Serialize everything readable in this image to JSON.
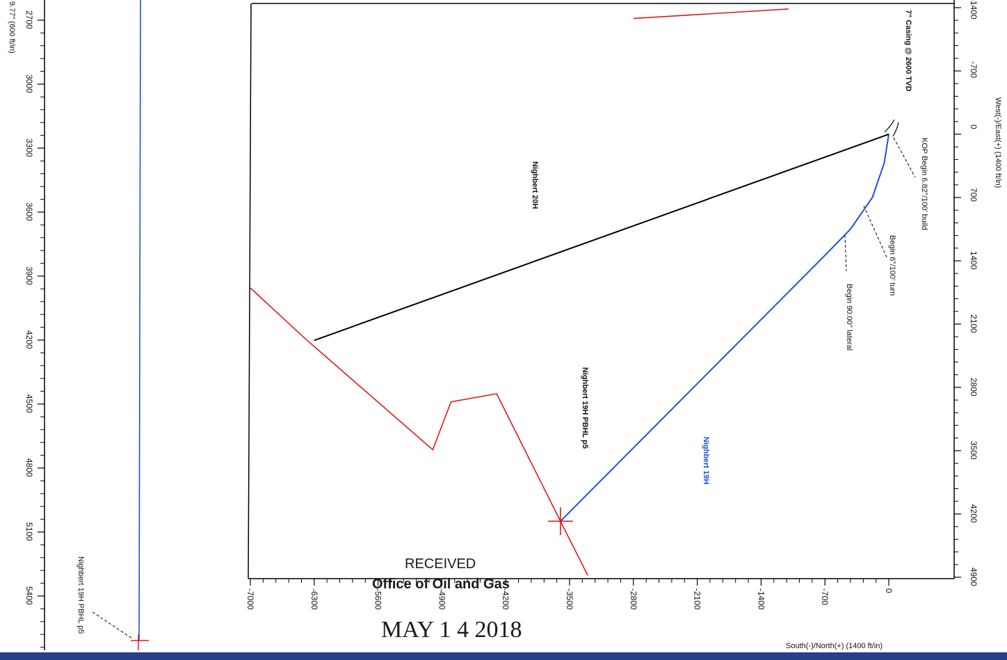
{
  "colors": {
    "well_19h": "#1f4fd8",
    "well_20h": "#000000",
    "boundary": "#e01818",
    "axis": "#000000",
    "frame_bottom": "#2a3f8a"
  },
  "left_panel": {
    "axis_title": "9.77\" (600 ft/in)",
    "ticks": [
      "2700",
      "3000",
      "3300",
      "3600",
      "3900",
      "4200",
      "4500",
      "4800",
      "5100",
      "5400"
    ],
    "target_label": "Nighbert 19H PBHL p5"
  },
  "chart": {
    "type": "line",
    "x_axis_title": "South(-)/North(+) (1400 ft/in)",
    "y_axis_title": "West(-)/East(+) (1400 ft/in)",
    "x_ticks": [
      "-7000",
      "-6300",
      "-5600",
      "-4900",
      "-4200",
      "-3500",
      "-2800",
      "-2100",
      "-1400",
      "-700",
      "0"
    ],
    "y_ticks": [
      "-1400",
      "-700",
      "0",
      "700",
      "1400",
      "2100",
      "2800",
      "3500",
      "4200",
      "4900"
    ],
    "xlim": [
      -7000,
      0
    ],
    "ylim": [
      -1400,
      4900
    ],
    "series": [
      {
        "name": "Nighbert 19H",
        "color_key": "well_19h",
        "points": [
          [
            0,
            0
          ],
          [
            -50,
            320
          ],
          [
            -180,
            700
          ],
          [
            -420,
            1050
          ],
          [
            -700,
            1340
          ],
          [
            -3600,
            4280
          ]
        ]
      },
      {
        "name": "Nighbert 20H",
        "color_key": "well_20h",
        "points": [
          [
            0,
            0
          ],
          [
            -6300,
            2280
          ]
        ]
      }
    ],
    "boundary": [
      [
        -1100,
        -1385
      ],
      [
        -2800,
        -1280
      ]
    ],
    "boundary_lower": [
      [
        -7000,
        1700
      ],
      [
        -6400,
        2260
      ],
      [
        -5000,
        3490
      ],
      [
        -4800,
        2960
      ],
      [
        -4300,
        2870
      ],
      [
        -3600,
        4280
      ],
      [
        -3300,
        4880
      ]
    ],
    "target_marker": [
      -3600,
      4280
    ],
    "labels": {
      "well_20h": "Nighbert 20H",
      "well_19h": "Nighbert 19H",
      "pbhl": "Nighbert 19H PBHL p5",
      "casing": "7\" Casing @ 2600 TVD",
      "kop": "KOP Begin 6.82°/100' build",
      "turn": "Begin 6°/100' turn",
      "lateral": "Begin 90.00° lateral"
    }
  },
  "stamp": {
    "received": "RECEIVED",
    "office": "Office of Oil and Gas",
    "date": "MAY 1 4 2018"
  }
}
